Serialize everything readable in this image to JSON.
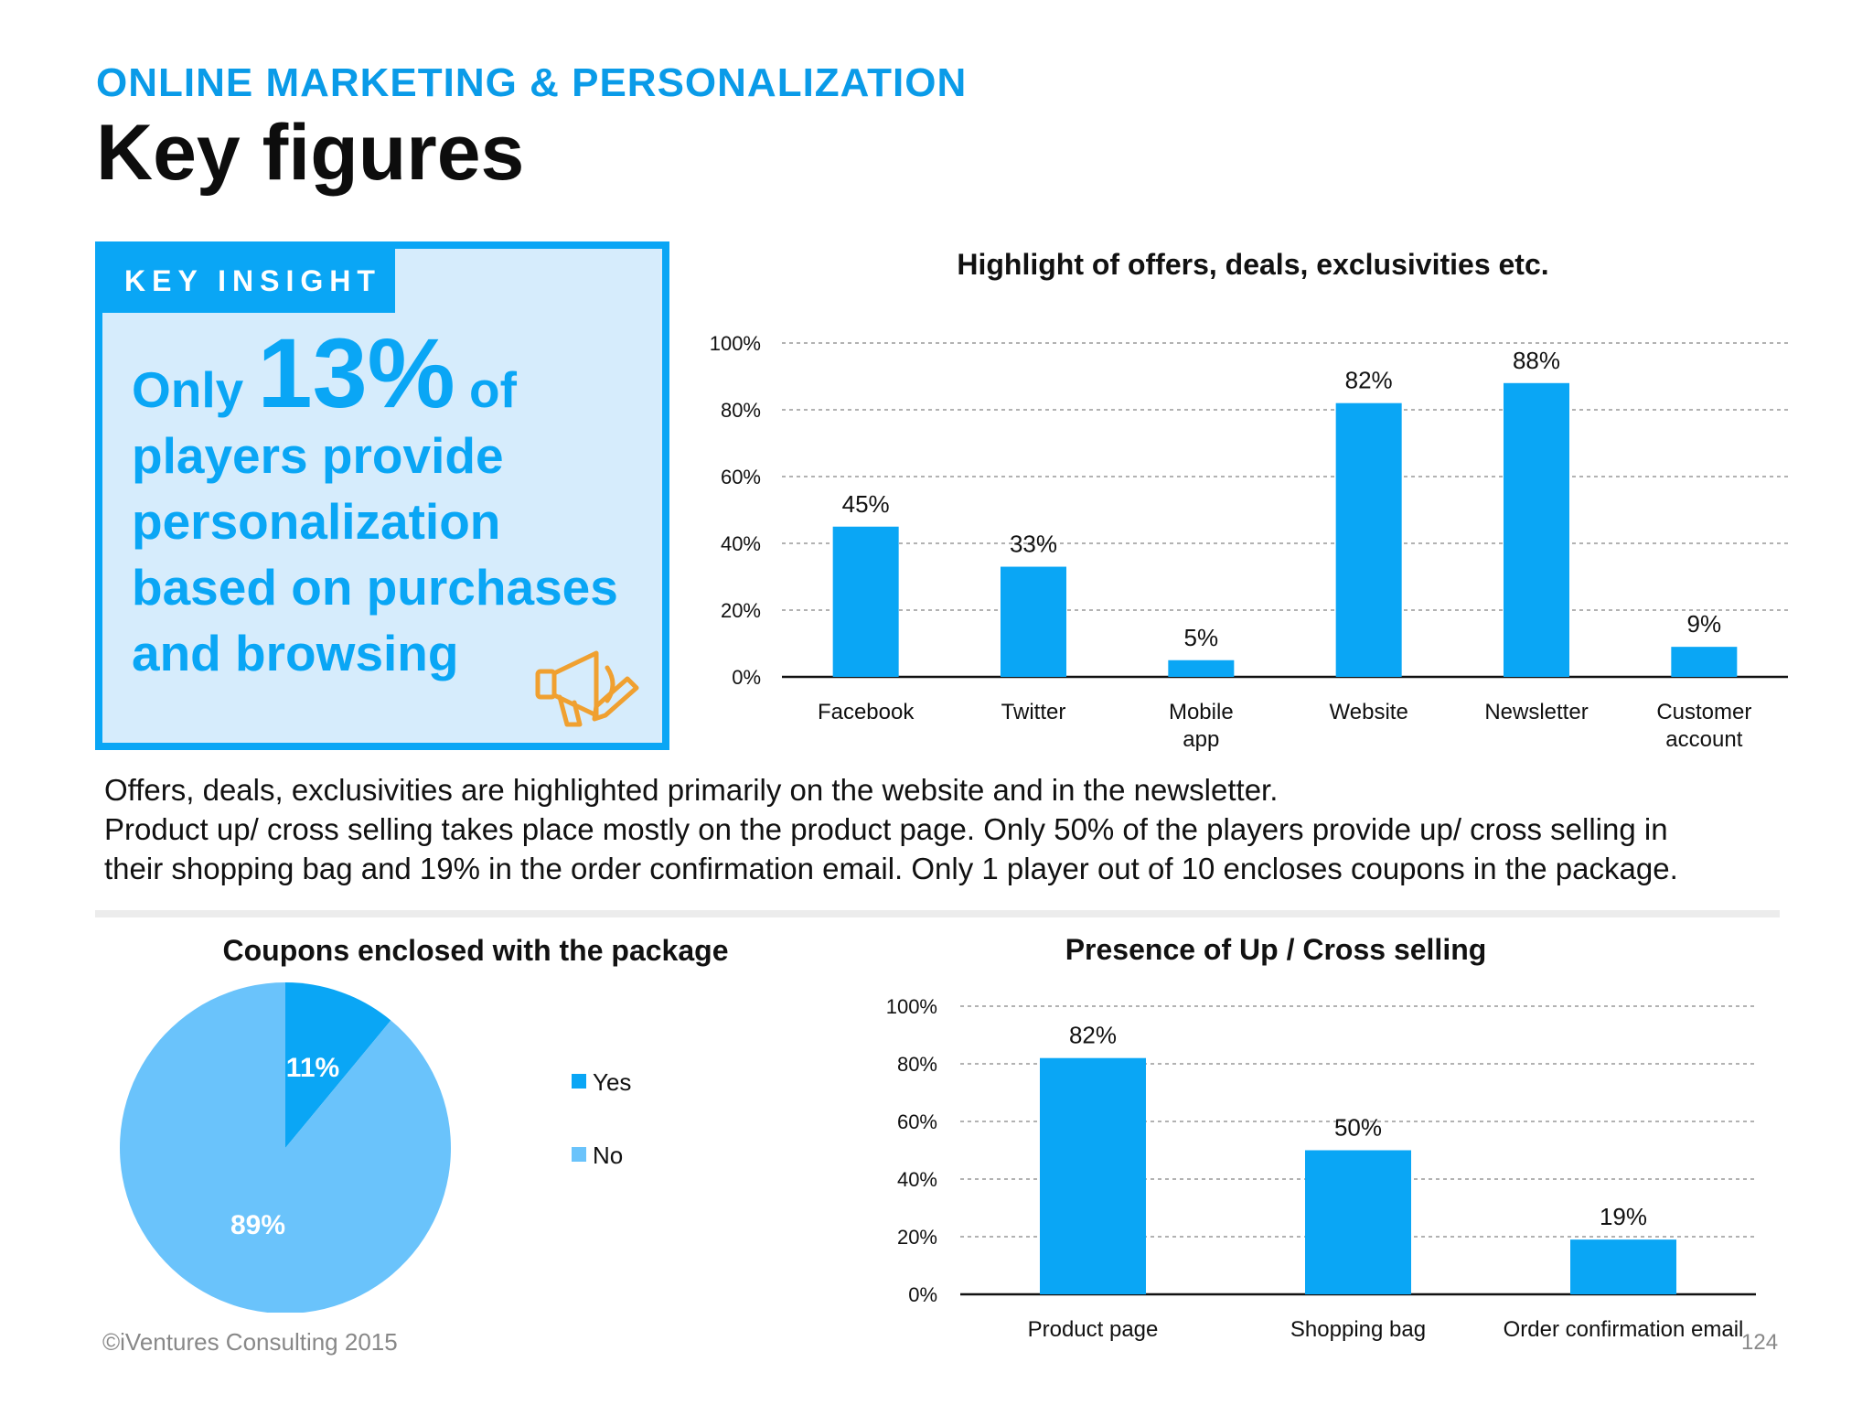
{
  "header": {
    "subtitle": "ONLINE MARKETING & PERSONALIZATION",
    "title": "Key figures"
  },
  "insight": {
    "tag": "KEY INSIGHT",
    "prefix": "Only",
    "highlight": "13%",
    "suffix": "of",
    "line2": "players provide",
    "line3": "personalization",
    "line4": "based on purchases",
    "line5": "and browsing",
    "icon": "megaphone-icon"
  },
  "paragraph": {
    "line1": "Offers, deals, exclusivities are highlighted primarily on the website and in the newsletter.",
    "line2": "Product up/ cross selling takes place mostly on the product page. Only 50% of the players provide up/ cross selling in",
    "line3": "their shopping bag and 19% in the order confirmation email. Only 1 player out of 10 encloses coupons in the package."
  },
  "footer": {
    "copyright": "©iVentures Consulting 2015",
    "page": "124"
  },
  "colors": {
    "accent": "#0aa6f5",
    "light": "#6ac3fb",
    "insight_bg": "#d6ecfc"
  },
  "chart_data": [
    {
      "type": "bar",
      "title": "Highlight of offers, deals, exclusivities etc.",
      "categories": [
        "Facebook",
        "Twitter",
        "Mobile app",
        "Website",
        "Newsletter",
        "Customer account"
      ],
      "values": [
        45,
        33,
        5,
        82,
        88,
        9
      ],
      "data_labels": [
        "45%",
        "33%",
        "5%",
        "82%",
        "88%",
        "9%"
      ],
      "ylim": [
        0,
        100
      ],
      "yticks": [
        "0%",
        "20%",
        "40%",
        "60%",
        "80%",
        "100%"
      ],
      "grid": true
    },
    {
      "type": "pie",
      "title": "Coupons enclosed with the package",
      "labels": [
        "Yes",
        "No"
      ],
      "values": [
        11,
        89
      ],
      "data_labels": [
        "11%",
        "89%"
      ],
      "legend": "right"
    },
    {
      "type": "bar",
      "title": "Presence of Up / Cross selling",
      "categories": [
        "Product page",
        "Shopping bag",
        "Order confirmation email"
      ],
      "values": [
        82,
        50,
        19
      ],
      "data_labels": [
        "82%",
        "50%",
        "19%"
      ],
      "ylim": [
        0,
        100
      ],
      "yticks": [
        "0%",
        "20%",
        "40%",
        "60%",
        "80%",
        "100%"
      ],
      "grid": true
    }
  ]
}
